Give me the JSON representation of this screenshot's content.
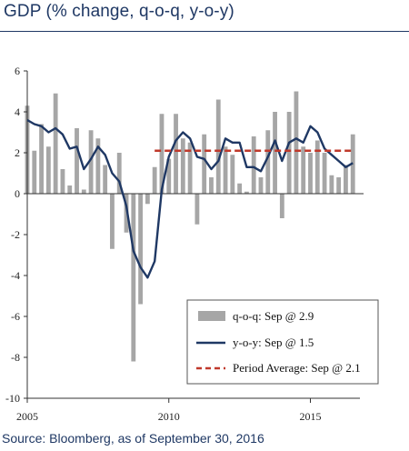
{
  "header": {
    "title": "GDP (% change, q-o-q, y-o-y)"
  },
  "footer": {
    "source": "Source: Bloomberg, as of September 30, 2016"
  },
  "chart_data": {
    "type": "bar",
    "title": "GDP (% change, q-o-q, y-o-y)",
    "xlabel": "",
    "ylabel": "",
    "ylim": [
      -10,
      6
    ],
    "y_ticks": [
      6,
      4,
      2,
      0,
      -2,
      -4,
      -6,
      -8,
      -10
    ],
    "x_ticks": [
      "2005",
      "2010",
      "2015"
    ],
    "x_range_years": [
      2005,
      2016.75
    ],
    "grid": false,
    "legend_placement": "bottom-right",
    "quarters": [
      2005.0,
      2005.25,
      2005.5,
      2005.75,
      2006.0,
      2006.25,
      2006.5,
      2006.75,
      2007.0,
      2007.25,
      2007.5,
      2007.75,
      2008.0,
      2008.25,
      2008.5,
      2008.75,
      2009.0,
      2009.25,
      2009.5,
      2009.75,
      2010.0,
      2010.25,
      2010.5,
      2010.75,
      2011.0,
      2011.25,
      2011.5,
      2011.75,
      2012.0,
      2012.25,
      2012.5,
      2012.75,
      2013.0,
      2013.25,
      2013.5,
      2013.75,
      2014.0,
      2014.25,
      2014.5,
      2014.75,
      2015.0,
      2015.25,
      2015.5,
      2015.75,
      2016.0,
      2016.25,
      2016.5
    ],
    "series": [
      {
        "name": "q-o-q: Sep @ 2.9",
        "type": "bar",
        "color": "#a6a6a6",
        "values": [
          4.3,
          2.1,
          3.4,
          2.3,
          4.9,
          1.2,
          0.4,
          3.2,
          0.2,
          3.1,
          2.7,
          1.4,
          -2.7,
          2.0,
          -1.9,
          -8.2,
          -5.4,
          -0.5,
          1.3,
          3.9,
          1.7,
          3.9,
          2.7,
          2.5,
          -1.5,
          2.9,
          0.8,
          4.6,
          2.3,
          1.9,
          0.5,
          0.1,
          2.8,
          0.8,
          3.1,
          4.0,
          -1.2,
          4.0,
          5.0,
          2.3,
          2.0,
          2.6,
          2.0,
          0.9,
          0.8,
          1.4,
          2.9
        ]
      },
      {
        "name": "y-o-y: Sep @ 1.5",
        "type": "line",
        "color": "#1f3864",
        "values": [
          3.6,
          3.4,
          3.3,
          3.0,
          3.2,
          2.9,
          2.2,
          2.3,
          1.2,
          1.7,
          2.3,
          1.9,
          1.0,
          0.6,
          -0.6,
          -2.8,
          -3.6,
          -4.1,
          -3.3,
          0.2,
          1.8,
          2.6,
          3.0,
          2.7,
          1.8,
          1.7,
          1.2,
          1.6,
          2.7,
          2.5,
          2.5,
          1.3,
          1.3,
          1.1,
          1.8,
          2.6,
          1.6,
          2.5,
          2.7,
          2.5,
          3.3,
          3.0,
          2.2,
          1.9,
          1.6,
          1.3,
          1.5
        ]
      },
      {
        "name": "Period Average: Sep @ 2.1",
        "type": "line",
        "style": "dashed",
        "color": "#c0392b",
        "x_start": 2009.5,
        "x_end": 2016.5,
        "value": 2.1
      }
    ]
  }
}
